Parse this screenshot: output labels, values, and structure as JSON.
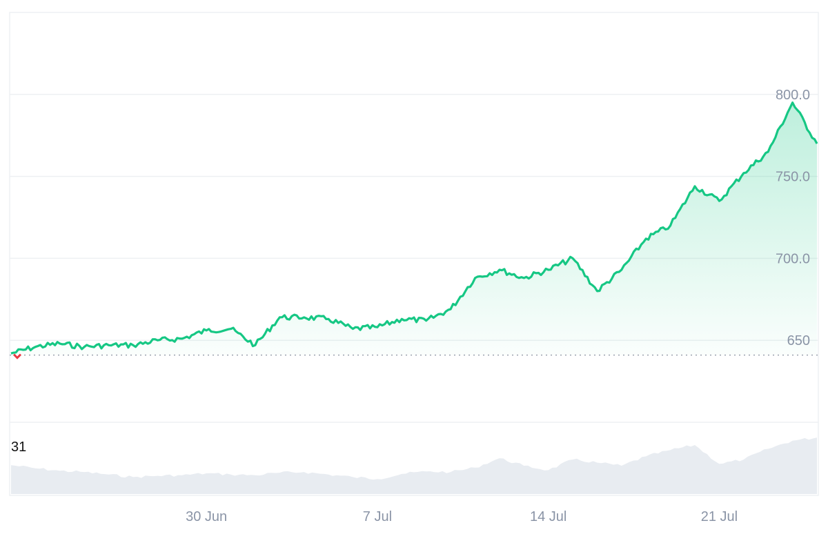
{
  "chart_data": {
    "type": "area",
    "title": "",
    "xlabel": "",
    "ylabel": "",
    "x_range": [
      "2025-06-22",
      "2025-07-25"
    ],
    "ylim": [
      600,
      850
    ],
    "grid": true,
    "baseline": 641,
    "x_ticks": [
      {
        "date": "2025-06-30",
        "label": "30 Jun"
      },
      {
        "date": "2025-07-07",
        "label": "7 Jul"
      },
      {
        "date": "2025-07-14",
        "label": "14 Jul"
      },
      {
        "date": "2025-07-21",
        "label": "21 Jul"
      }
    ],
    "y_ticks": [
      {
        "value": 650,
        "label": "650"
      },
      {
        "value": 700,
        "label": "700.0"
      },
      {
        "value": 750,
        "label": "750.0"
      },
      {
        "value": 800,
        "label": "800.0"
      }
    ],
    "series": [
      {
        "role": "price",
        "color": "#16c784",
        "below_baseline_color": "#ea3943",
        "points": [
          [
            "2025-06-22",
            642
          ],
          [
            "2025-06-23",
            646
          ],
          [
            "2025-06-24",
            648
          ],
          [
            "2025-06-25",
            646
          ],
          [
            "2025-06-26",
            647
          ],
          [
            "2025-06-27",
            647
          ],
          [
            "2025-06-28",
            650
          ],
          [
            "2025-06-29",
            651
          ],
          [
            "2025-06-30",
            656
          ],
          [
            "2025-07-01",
            657
          ],
          [
            "2025-07-02",
            647
          ],
          [
            "2025-07-03",
            664
          ],
          [
            "2025-07-04",
            664
          ],
          [
            "2025-07-05",
            663
          ],
          [
            "2025-07-06",
            657
          ],
          [
            "2025-07-07",
            658
          ],
          [
            "2025-07-08",
            663
          ],
          [
            "2025-07-09",
            662
          ],
          [
            "2025-07-10",
            669
          ],
          [
            "2025-07-11",
            688
          ],
          [
            "2025-07-12",
            693
          ],
          [
            "2025-07-13",
            688
          ],
          [
            "2025-07-14",
            693
          ],
          [
            "2025-07-15",
            700
          ],
          [
            "2025-07-16",
            680
          ],
          [
            "2025-07-17",
            693
          ],
          [
            "2025-07-18",
            712
          ],
          [
            "2025-07-19",
            720
          ],
          [
            "2025-07-20",
            744
          ],
          [
            "2025-07-21",
            735
          ],
          [
            "2025-07-22",
            752
          ],
          [
            "2025-07-23",
            765
          ],
          [
            "2025-07-24",
            795
          ],
          [
            "2025-07-25",
            770
          ]
        ]
      },
      {
        "role": "volume",
        "color": "#e8ecf1",
        "points": [
          [
            "2025-06-22",
            0.46
          ],
          [
            "2025-06-23",
            0.41
          ],
          [
            "2025-06-24",
            0.37
          ],
          [
            "2025-06-25",
            0.35
          ],
          [
            "2025-06-26",
            0.31
          ],
          [
            "2025-06-27",
            0.27
          ],
          [
            "2025-06-28",
            0.29
          ],
          [
            "2025-06-29",
            0.3
          ],
          [
            "2025-06-30",
            0.33
          ],
          [
            "2025-07-01",
            0.31
          ],
          [
            "2025-07-02",
            0.3
          ],
          [
            "2025-07-03",
            0.34
          ],
          [
            "2025-07-04",
            0.35
          ],
          [
            "2025-07-05",
            0.31
          ],
          [
            "2025-07-06",
            0.27
          ],
          [
            "2025-07-07",
            0.24
          ],
          [
            "2025-07-08",
            0.32
          ],
          [
            "2025-07-09",
            0.36
          ],
          [
            "2025-07-10",
            0.35
          ],
          [
            "2025-07-11",
            0.42
          ],
          [
            "2025-07-12",
            0.57
          ],
          [
            "2025-07-13",
            0.45
          ],
          [
            "2025-07-14",
            0.38
          ],
          [
            "2025-07-15",
            0.55
          ],
          [
            "2025-07-16",
            0.5
          ],
          [
            "2025-07-17",
            0.45
          ],
          [
            "2025-07-18",
            0.6
          ],
          [
            "2025-07-19",
            0.7
          ],
          [
            "2025-07-20",
            0.78
          ],
          [
            "2025-07-21",
            0.48
          ],
          [
            "2025-07-22",
            0.55
          ],
          [
            "2025-07-23",
            0.72
          ],
          [
            "2025-07-24",
            0.85
          ],
          [
            "2025-07-25",
            0.9
          ]
        ]
      }
    ],
    "volume_label": "31"
  }
}
